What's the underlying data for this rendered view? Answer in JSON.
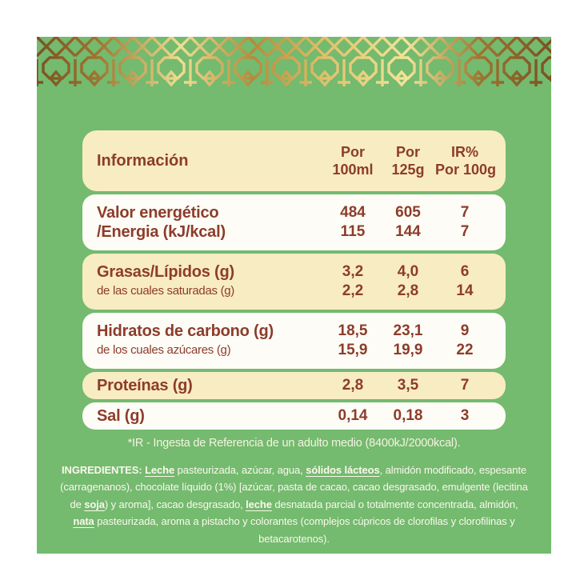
{
  "colors": {
    "card_green": "#74ba6f",
    "row_cream": "#f8ecc3",
    "row_white": "#fdfcf6",
    "text_brown": "#8d3c2b",
    "text_light": "#fbf8ec",
    "gold_dark": "#7a5122",
    "gold_light": "#f2e499"
  },
  "ornament": {
    "name": "arabesque-gold-band"
  },
  "table": {
    "header": {
      "label": "Información",
      "columns": [
        {
          "top": "Por",
          "bottom": "100ml"
        },
        {
          "top": "Por",
          "bottom": "125g"
        },
        {
          "top": "IR%",
          "bottom": "Por 100g"
        }
      ]
    },
    "rows": [
      {
        "bg": "white",
        "lines": [
          {
            "label": "Valor energético",
            "bold": true,
            "values": [
              "484",
              "605",
              "7"
            ]
          },
          {
            "label": "/Energia (kJ/kcal)",
            "bold": true,
            "values": [
              "115",
              "144",
              "7"
            ]
          }
        ]
      },
      {
        "bg": "cream",
        "lines": [
          {
            "label": "Grasas/Lípidos (g)",
            "bold": true,
            "values": [
              "3,2",
              "4,0",
              "6"
            ]
          },
          {
            "label": "de las cuales saturadas (g)",
            "bold": false,
            "values": [
              "2,2",
              "2,8",
              "14"
            ]
          }
        ]
      },
      {
        "bg": "white",
        "lines": [
          {
            "label": "Hidratos de carbono (g)",
            "bold": true,
            "values": [
              "18,5",
              "23,1",
              "9"
            ]
          },
          {
            "label": "de los cuales azúcares (g)",
            "bold": false,
            "values": [
              "15,9",
              "19,9",
              "22"
            ]
          }
        ]
      },
      {
        "bg": "cream",
        "lines": [
          {
            "label": "Proteínas (g)",
            "bold": true,
            "values": [
              "2,8",
              "3,5",
              "7"
            ]
          }
        ]
      },
      {
        "bg": "white",
        "lines": [
          {
            "label": "Sal (g)",
            "bold": true,
            "values": [
              "0,14",
              "0,18",
              "3"
            ]
          }
        ]
      }
    ]
  },
  "footnote": "*IR - Ingesta de Referencia de un adulto medio (8400kJ/2000kcal).",
  "ingredients": {
    "segments": [
      {
        "text": "INGREDIENTES:  ",
        "bold": true,
        "underline": false
      },
      {
        "text": "Leche",
        "bold": true,
        "underline": true
      },
      {
        "text": " pasteurizada, azúcar, agua, ",
        "bold": false,
        "underline": false
      },
      {
        "text": "sólidos lácteos",
        "bold": true,
        "underline": true
      },
      {
        "text": ", almidón modificado, espesante (carragenanos), chocolate líquido (1%) [azúcar, pasta de cacao, cacao desgrasado, emulgente (lecitina de ",
        "bold": false,
        "underline": false
      },
      {
        "text": "soja",
        "bold": true,
        "underline": true
      },
      {
        "text": ") y aroma], cacao desgrasado, ",
        "bold": false,
        "underline": false
      },
      {
        "text": "leche",
        "bold": true,
        "underline": true
      },
      {
        "text": " desnatada parcial o totalmente concentrada, almidón, ",
        "bold": false,
        "underline": false
      },
      {
        "text": "nata",
        "bold": true,
        "underline": true
      },
      {
        "text": " pasteurizada, aroma a pistacho y colorantes (complejos cúpricos de clorofilas y clorofilinas y betacarotenos).",
        "bold": false,
        "underline": false
      }
    ]
  }
}
